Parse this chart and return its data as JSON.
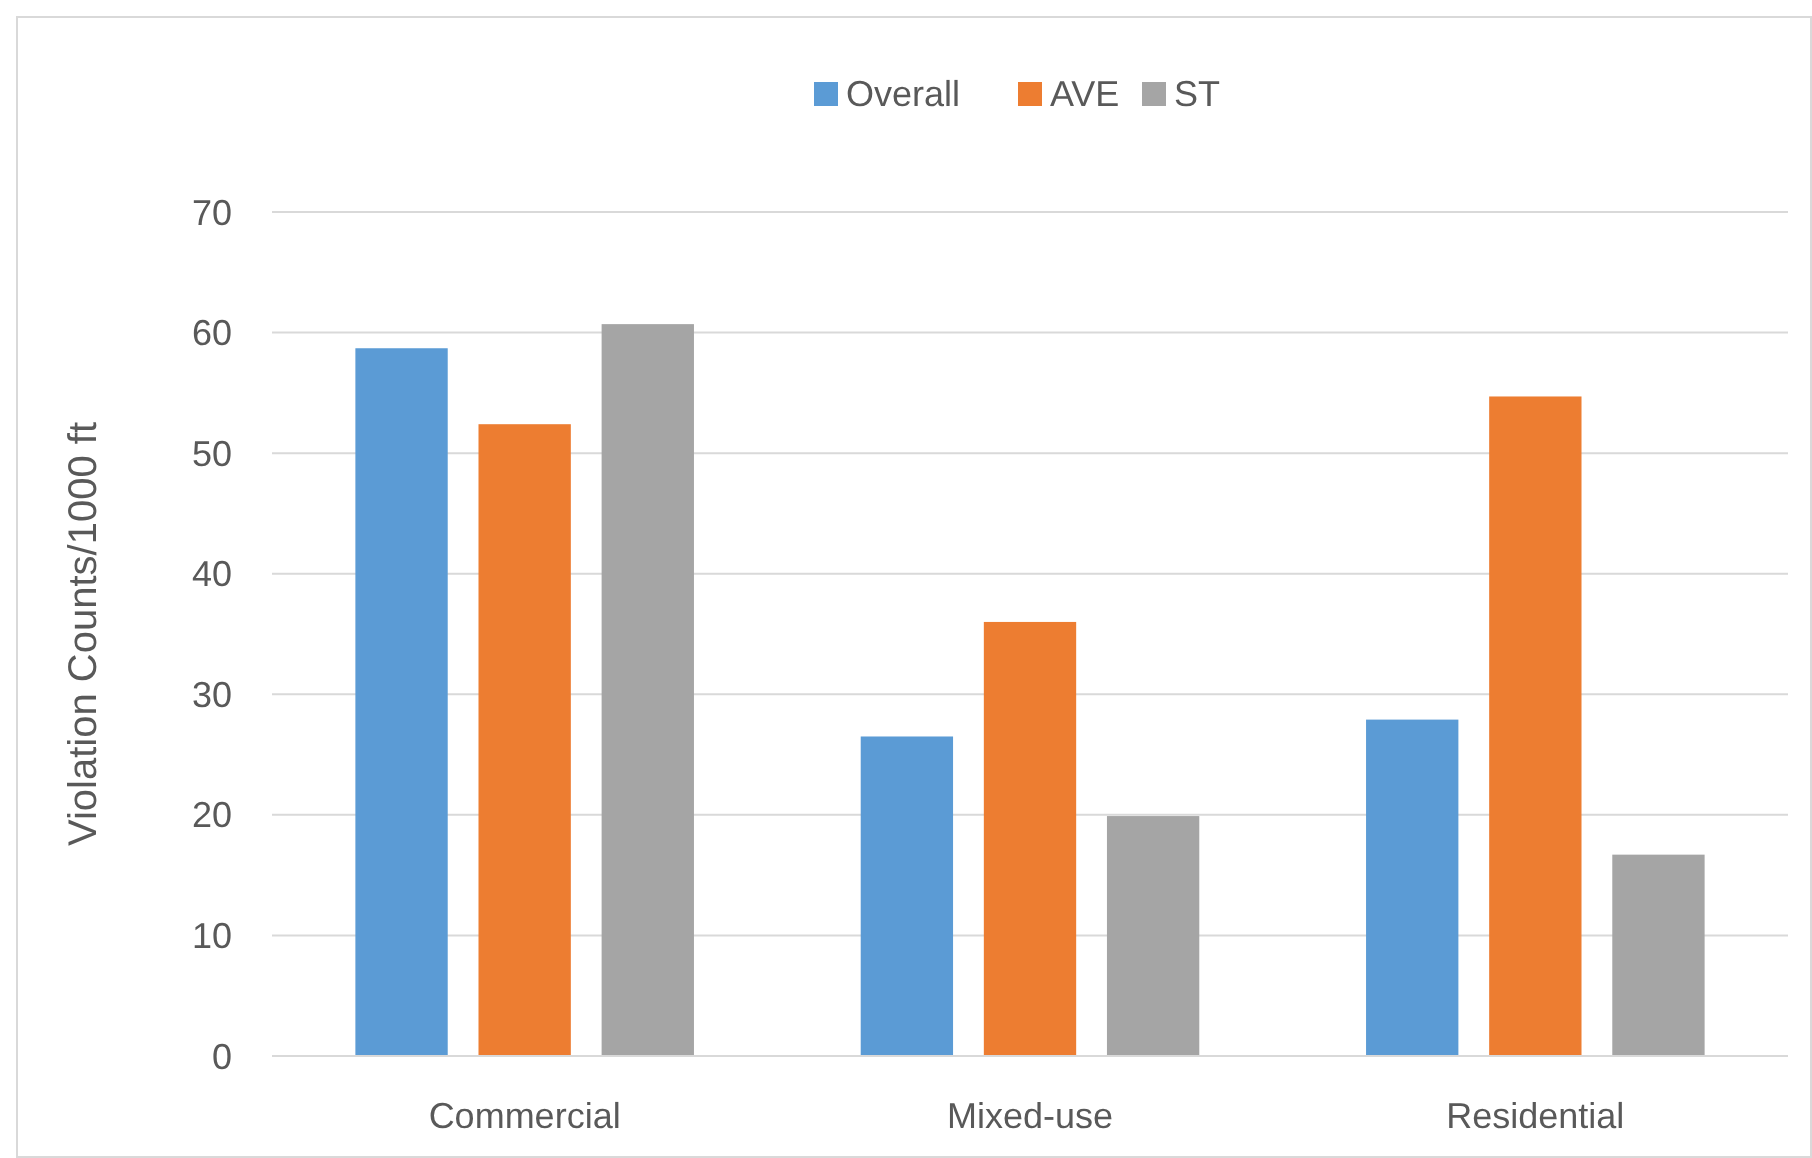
{
  "chart_data": {
    "type": "bar",
    "ylabel": "Violation Counts/1000 ft",
    "categories": [
      "Commercial",
      "Mixed-use",
      "Residential"
    ],
    "series": [
      {
        "name": "Overall",
        "color": "#5b9bd5",
        "values": [
          58.7,
          26.5,
          27.9
        ]
      },
      {
        "name": "AVE",
        "color": "#ed7d31",
        "values": [
          52.4,
          36.0,
          54.7
        ]
      },
      {
        "name": "ST",
        "color": "#a5a5a5",
        "values": [
          60.7,
          19.9,
          16.7
        ]
      }
    ],
    "ylim": [
      0,
      70
    ],
    "yticks": [
      0,
      10,
      20,
      30,
      40,
      50,
      60,
      70
    ],
    "grid": "y",
    "legend": "top"
  }
}
